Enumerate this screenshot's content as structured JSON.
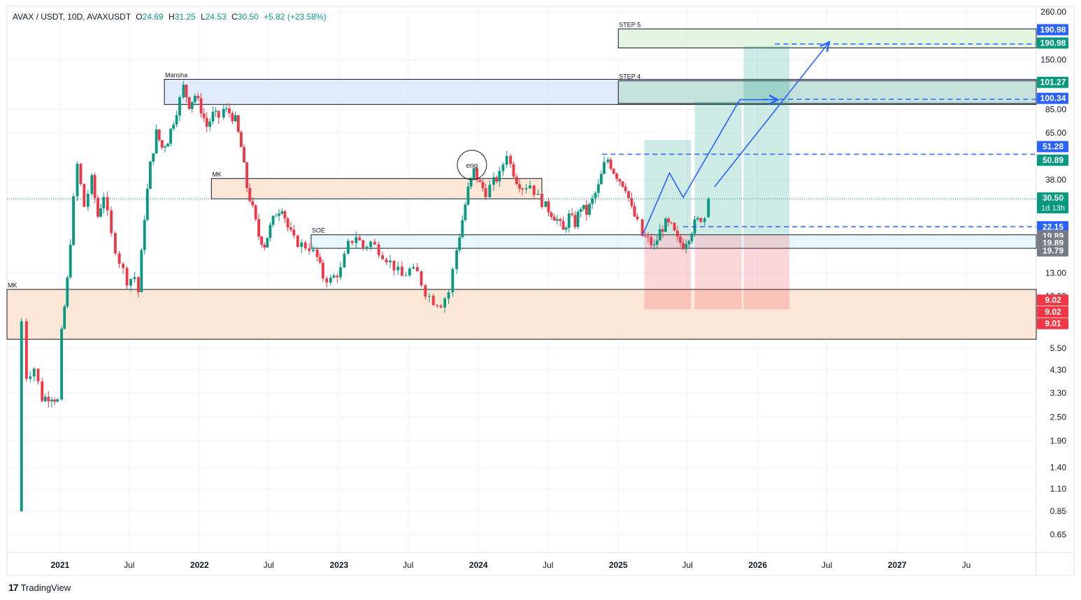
{
  "legend": {
    "symbol": "AVAX / USDT, 10D, AVAXUSDT",
    "open_label": "O",
    "open": "24.69",
    "high_label": "H",
    "high": "31.25",
    "low_label": "L",
    "low": "24.53",
    "close_label": "C",
    "close": "30.50",
    "change": "+5.82 (+23.58%)"
  },
  "brand": {
    "logo": "17",
    "name": "TradingView"
  },
  "colors": {
    "up": "#089981",
    "down": "#f23645",
    "grid": "#f0f3fa",
    "axis_text": "#131722",
    "arrow": "#2962ff"
  },
  "chart_data": {
    "type": "candlestick",
    "y_scale": "log",
    "ylim": [
      0.55,
      290
    ],
    "xlim": [
      "2020-08-15",
      "2027-12-31"
    ],
    "y_ticks": [
      "260.00",
      "150.00",
      "85.00",
      "65.00",
      "38.00",
      "13.00",
      "10.00",
      "5.50",
      "4.30",
      "3.30",
      "2.50",
      "1.90",
      "1.40",
      "1.10",
      "0.85",
      "0.65"
    ],
    "x_ticks": [
      {
        "label": "2021",
        "date": "2021-01-01",
        "bold": true
      },
      {
        "label": "Jul",
        "date": "2021-07-01",
        "bold": false
      },
      {
        "label": "2022",
        "date": "2022-01-01",
        "bold": true
      },
      {
        "label": "Jul",
        "date": "2022-07-01",
        "bold": false
      },
      {
        "label": "2023",
        "date": "2023-01-01",
        "bold": true
      },
      {
        "label": "Jul",
        "date": "2023-07-01",
        "bold": false
      },
      {
        "label": "2024",
        "date": "2024-01-01",
        "bold": true
      },
      {
        "label": "Jul",
        "date": "2024-07-01",
        "bold": false
      },
      {
        "label": "2025",
        "date": "2025-01-01",
        "bold": true
      },
      {
        "label": "Jul",
        "date": "2025-07-01",
        "bold": false
      },
      {
        "label": "2026",
        "date": "2026-01-01",
        "bold": true
      },
      {
        "label": "Jul",
        "date": "2026-07-01",
        "bold": false
      },
      {
        "label": "2027",
        "date": "2027-01-01",
        "bold": true
      },
      {
        "label": "Ju",
        "date": "2027-07-01",
        "bold": false
      }
    ],
    "path": [
      [
        "2020-09-22",
        0.85
      ],
      [
        "2020-09-22",
        7.5
      ],
      [
        "2020-10-05",
        4.0
      ],
      [
        "2020-10-25",
        4.4
      ],
      [
        "2020-11-15",
        3.1
      ],
      [
        "2020-12-10",
        3.2
      ],
      [
        "2020-12-25",
        3.0
      ],
      [
        "2021-01-05",
        6.5
      ],
      [
        "2021-01-20",
        12.0
      ],
      [
        "2021-02-05",
        30.0
      ],
      [
        "2021-02-15",
        45.0
      ],
      [
        "2021-03-05",
        28.0
      ],
      [
        "2021-03-25",
        38.0
      ],
      [
        "2021-04-10",
        25.0
      ],
      [
        "2021-04-25",
        32.0
      ],
      [
        "2021-05-15",
        20.0
      ],
      [
        "2021-06-05",
        15.0
      ],
      [
        "2021-06-25",
        12.0
      ],
      [
        "2021-07-15",
        12.5
      ],
      [
        "2021-07-25",
        10.5
      ],
      [
        "2021-08-10",
        25.0
      ],
      [
        "2021-08-25",
        45.0
      ],
      [
        "2021-09-10",
        65.0
      ],
      [
        "2021-09-25",
        55.0
      ],
      [
        "2021-10-10",
        60.0
      ],
      [
        "2021-10-25",
        75.0
      ],
      [
        "2021-11-10",
        95.0
      ],
      [
        "2021-11-20",
        110.0
      ],
      [
        "2021-12-05",
        90.0
      ],
      [
        "2021-12-20",
        100.0
      ],
      [
        "2022-01-05",
        85.0
      ],
      [
        "2022-01-20",
        70.0
      ],
      [
        "2022-02-05",
        80.0
      ],
      [
        "2022-02-20",
        78.0
      ],
      [
        "2022-03-05",
        85.0
      ],
      [
        "2022-03-20",
        82.0
      ],
      [
        "2022-04-05",
        75.0
      ],
      [
        "2022-04-20",
        55.0
      ],
      [
        "2022-05-05",
        35.0
      ],
      [
        "2022-05-20",
        27.0
      ],
      [
        "2022-06-05",
        20.0
      ],
      [
        "2022-06-20",
        18.0
      ],
      [
        "2022-07-05",
        22.0
      ],
      [
        "2022-07-20",
        26.0
      ],
      [
        "2022-08-05",
        28.0
      ],
      [
        "2022-08-20",
        22.0
      ],
      [
        "2022-09-05",
        19.0
      ],
      [
        "2022-09-25",
        18.0
      ],
      [
        "2022-10-15",
        17.5
      ],
      [
        "2022-11-05",
        15.5
      ],
      [
        "2022-11-20",
        12.5
      ],
      [
        "2022-12-10",
        12.0
      ],
      [
        "2023-01-05",
        13.5
      ],
      [
        "2023-01-25",
        18.0
      ],
      [
        "2023-02-15",
        20.0
      ],
      [
        "2023-03-05",
        17.5
      ],
      [
        "2023-03-25",
        18.5
      ],
      [
        "2023-04-15",
        17.0
      ],
      [
        "2023-05-05",
        15.5
      ],
      [
        "2023-05-25",
        14.0
      ],
      [
        "2023-06-15",
        12.5
      ],
      [
        "2023-07-05",
        13.5
      ],
      [
        "2023-07-25",
        13.0
      ],
      [
        "2023-08-15",
        10.5
      ],
      [
        "2023-09-05",
        9.5
      ],
      [
        "2023-09-25",
        9.2
      ],
      [
        "2023-10-15",
        10.5
      ],
      [
        "2023-11-05",
        17.0
      ],
      [
        "2023-11-20",
        24.0
      ],
      [
        "2023-12-05",
        34.0
      ],
      [
        "2023-12-20",
        42.0
      ],
      [
        "2024-01-05",
        36.0
      ],
      [
        "2024-01-20",
        33.0
      ],
      [
        "2024-02-10",
        37.0
      ],
      [
        "2024-02-25",
        40.0
      ],
      [
        "2024-03-15",
        52.0
      ],
      [
        "2024-03-25",
        45.0
      ],
      [
        "2024-04-10",
        38.0
      ],
      [
        "2024-04-25",
        35.0
      ],
      [
        "2024-05-15",
        36.0
      ],
      [
        "2024-06-05",
        31.0
      ],
      [
        "2024-06-25",
        28.0
      ],
      [
        "2024-07-10",
        26.0
      ],
      [
        "2024-07-25",
        24.0
      ],
      [
        "2024-08-10",
        21.0
      ],
      [
        "2024-08-25",
        25.0
      ],
      [
        "2024-09-10",
        23.0
      ],
      [
        "2024-09-25",
        28.0
      ],
      [
        "2024-10-10",
        26.0
      ],
      [
        "2024-10-25",
        30.0
      ],
      [
        "2024-11-10",
        35.0
      ],
      [
        "2024-11-25",
        45.0
      ],
      [
        "2024-12-05",
        48.0
      ],
      [
        "2024-12-20",
        42.0
      ],
      [
        "2025-01-05",
        38.0
      ],
      [
        "2025-01-20",
        35.0
      ],
      [
        "2025-02-05",
        27.0
      ],
      [
        "2025-02-20",
        23.0
      ],
      [
        "2025-03-05",
        20.0
      ],
      [
        "2025-03-20",
        19.0
      ],
      [
        "2025-04-05",
        17.5
      ],
      [
        "2025-04-20",
        21.0
      ],
      [
        "2025-05-05",
        23.0
      ],
      [
        "2025-05-20",
        22.0
      ],
      [
        "2025-06-05",
        19.0
      ],
      [
        "2025-06-20",
        18.0
      ],
      [
        "2025-07-05",
        20.0
      ],
      [
        "2025-07-20",
        23.0
      ],
      [
        "2025-08-05",
        24.5
      ],
      [
        "2025-08-15",
        24.69
      ]
    ],
    "last_candle": {
      "date": "2025-08-25",
      "open": 24.69,
      "high": 31.25,
      "low": 24.53,
      "close": 30.5
    },
    "zones": [
      {
        "label": "Mansha",
        "t0": "2021-10-01",
        "t1": "2027-12-31",
        "y0": 90,
        "y1": 120,
        "fill": "#dbe7fb",
        "stroke": "#131722"
      },
      {
        "label": "MK",
        "t0": "2022-02-01",
        "t1": "2024-06-15",
        "y0": 30.5,
        "y1": 38.5,
        "fill": "#fde3d0",
        "stroke": "#131722"
      },
      {
        "label": "SOE",
        "t0": "2022-10-20",
        "t1": "2027-12-31",
        "y0": 17.3,
        "y1": 20.2,
        "fill": "#e3f6fb",
        "stroke": "#131722"
      },
      {
        "label": "MK",
        "t0": "2020-08-15",
        "t1": "2027-12-31",
        "y0": 6.1,
        "y1": 10.8,
        "fill": "#fde3d0",
        "stroke": "#131722"
      },
      {
        "label": "STEP 5",
        "t0": "2025-01-01",
        "t1": "2027-12-31",
        "y0": 172,
        "y1": 214,
        "fill": "#def2dc",
        "stroke": "#131722"
      },
      {
        "label": "STEP 4",
        "t0": "2025-01-01",
        "t1": "2027-12-31",
        "y0": 91,
        "y1": 118,
        "fill": "#bfe0d7",
        "stroke": "#131722"
      }
    ],
    "positions": [
      {
        "t0": "2025-03-10",
        "t1": "2025-07-10",
        "entry": 20.2,
        "target": 60.0,
        "stop": 8.6
      },
      {
        "t0": "2025-07-20",
        "t1": "2025-11-20",
        "entry": 20.2,
        "target": 93.0,
        "stop": 8.6
      },
      {
        "t0": "2025-11-25",
        "t1": "2026-03-25",
        "entry": 20.2,
        "target": 176.0,
        "stop": 8.6
      }
    ],
    "dashed_levels": [
      {
        "t0": "2024-11-20",
        "t1": "2027-12-31",
        "y": 50.89
      },
      {
        "t0": "2025-06-20",
        "t1": "2027-12-31",
        "y": 22.15
      },
      {
        "t0": "2026-01-15",
        "t1": "2027-12-31",
        "y": 95.5
      },
      {
        "t0": "2026-02-15",
        "t1": "2027-12-31",
        "y": 180.0
      }
    ],
    "arrow_paths": [
      [
        [
          "2025-03-05",
          20.0
        ],
        [
          "2025-05-15",
          41.0
        ],
        [
          "2025-06-20",
          31.0
        ],
        [
          "2025-11-15",
          95.0
        ],
        [
          "2026-02-20",
          95.0
        ]
      ],
      [
        [
          "2025-09-10",
          35.0
        ],
        [
          "2026-07-05",
          182.0
        ]
      ]
    ],
    "annotations": [
      {
        "label": "eng",
        "date": "2023-12-15",
        "y": 45.0
      }
    ],
    "price_labels": [
      {
        "text": "190.98",
        "y": 212,
        "bg": "#2962ff",
        "fg": "#ffffff"
      },
      {
        "text": "190.98",
        "y": 182,
        "bg": "#089981",
        "fg": "#ffffff"
      },
      {
        "text": "101.27",
        "y": 116,
        "bg": "#089981",
        "fg": "#ffffff"
      },
      {
        "text": "100.34",
        "y": 96.5,
        "bg": "#2962ff",
        "fg": "#ffffff"
      },
      {
        "text": "51.28",
        "y": 55.5,
        "bg": "#2962ff",
        "fg": "#ffffff"
      },
      {
        "text": "50.89",
        "y": 47.5,
        "bg": "#089981",
        "fg": "#ffffff"
      },
      {
        "text": "30.50",
        "y": 30.8,
        "bg": "#089981",
        "fg": "#ffffff",
        "sub": "1d 13h"
      },
      {
        "text": "22.15",
        "y": 22.15,
        "bg": "#2962ff",
        "fg": "#ffffff"
      },
      {
        "text": "19.89",
        "y": 19.95,
        "bg": "#787b86",
        "fg": "#ffffff"
      },
      {
        "text": "19.89",
        "y": 18.35,
        "bg": "#787b86",
        "fg": "#ffffff"
      },
      {
        "text": "19.79",
        "y": 16.8,
        "bg": "#787b86",
        "fg": "#ffffff"
      },
      {
        "text": "9.02",
        "y": 9.55,
        "bg": "#f23645",
        "fg": "#ffffff"
      },
      {
        "text": "9.02",
        "y": 8.35,
        "bg": "#f23645",
        "fg": "#ffffff"
      },
      {
        "text": "9.01",
        "y": 7.3,
        "bg": "#f23645",
        "fg": "#ffffff"
      }
    ]
  }
}
